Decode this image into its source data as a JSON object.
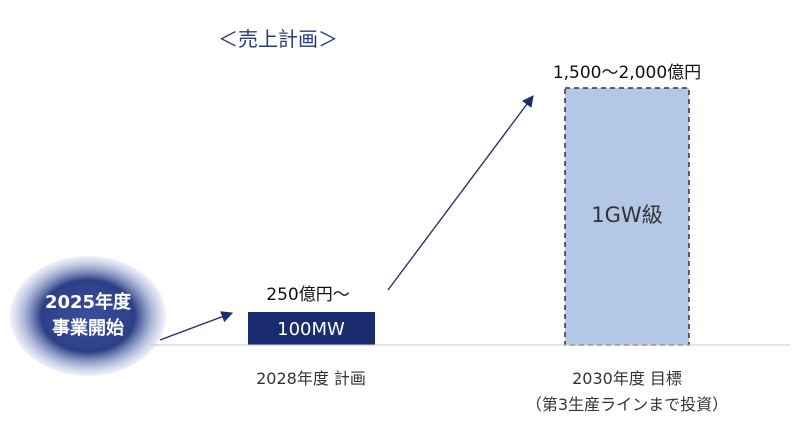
{
  "chart_data": {
    "type": "bar",
    "title": "＜売上計画＞",
    "categories": [
      "2028年度 計画",
      "2030年度 目標"
    ],
    "category_sublabels": [
      "",
      "（第3生産ラインまで投資）"
    ],
    "series": [
      {
        "values": [
          250,
          2000
        ],
        "value_labels": [
          "250億円～",
          "1,500～2,000億円"
        ],
        "bar_labels": [
          "100MW",
          "1GW級"
        ]
      }
    ],
    "value_range_target": [
      1500,
      2000
    ],
    "start_label_line1": "2025年度",
    "start_label_line2": "事業開始",
    "colors": {
      "plan_bar": "#1a2b6e",
      "target_bar": "#b4c7e7",
      "arrow": "#1a2b6e",
      "start_bubble": "#2c3f86"
    },
    "xlabel": "",
    "ylabel": "",
    "grid": false
  }
}
